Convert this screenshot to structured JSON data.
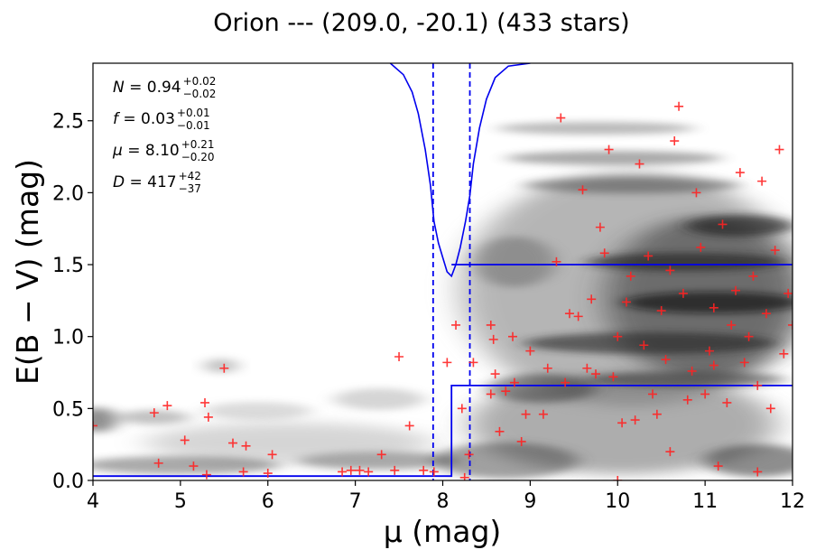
{
  "chart_data": {
    "type": "scatter",
    "title": "Orion --- (209.0, -20.1) (433 stars)",
    "xlabel": "μ (mag)",
    "ylabel": "E(B − V) (mag)",
    "xlim": [
      4,
      12
    ],
    "ylim": [
      0,
      2.9
    ],
    "xticks": [
      "4",
      "5",
      "6",
      "7",
      "8",
      "9",
      "10",
      "11",
      "12"
    ],
    "yticks": [
      "0.0",
      "0.5",
      "1.0",
      "1.5",
      "2.0",
      "2.5"
    ],
    "grid": false,
    "annotations": [
      {
        "sym": "N",
        "value": "0.94",
        "sup": "+0.02",
        "sub": "−0.02"
      },
      {
        "sym": "f",
        "value": "0.03",
        "sup": "+0.01",
        "sub": "−0.01"
      },
      {
        "sym": "μ",
        "value": "8.10",
        "sup": "+0.21",
        "sub": "−0.20"
      },
      {
        "sym": "D",
        "value": "417",
        "sup": "+42",
        "sub": "−37"
      }
    ],
    "colors": {
      "stars": "#ff2222",
      "model": "#0000ee",
      "density": "#1a1a1a",
      "axes": "#000000"
    },
    "fit_profile": [
      [
        4,
        0.03
      ],
      [
        8.1,
        0.03
      ],
      [
        8.1,
        0.66
      ],
      [
        12,
        0.66
      ]
    ],
    "upper_profile": [
      [
        8.1,
        1.5
      ],
      [
        12,
        1.5
      ]
    ],
    "dashed_lines_x": [
      7.89,
      8.31
    ],
    "probability_curve": [
      [
        7.4,
        2.9
      ],
      [
        7.55,
        2.82
      ],
      [
        7.65,
        2.7
      ],
      [
        7.72,
        2.55
      ],
      [
        7.8,
        2.3
      ],
      [
        7.86,
        2.05
      ],
      [
        7.9,
        1.8
      ],
      [
        7.95,
        1.65
      ],
      [
        8.0,
        1.55
      ],
      [
        8.05,
        1.45
      ],
      [
        8.1,
        1.42
      ],
      [
        8.15,
        1.5
      ],
      [
        8.2,
        1.62
      ],
      [
        8.26,
        1.8
      ],
      [
        8.31,
        1.98
      ],
      [
        8.35,
        2.2
      ],
      [
        8.42,
        2.45
      ],
      [
        8.5,
        2.65
      ],
      [
        8.6,
        2.8
      ],
      [
        8.75,
        2.88
      ],
      [
        9.0,
        2.9
      ]
    ],
    "stars": [
      [
        4.0,
        0.38
      ],
      [
        4.7,
        0.47
      ],
      [
        4.75,
        0.12
      ],
      [
        4.85,
        0.52
      ],
      [
        5.05,
        0.28
      ],
      [
        5.15,
        0.1
      ],
      [
        5.28,
        0.54
      ],
      [
        5.32,
        0.44
      ],
      [
        5.3,
        0.04
      ],
      [
        5.5,
        0.78
      ],
      [
        5.6,
        0.26
      ],
      [
        5.75,
        0.24
      ],
      [
        5.72,
        0.06
      ],
      [
        6.05,
        0.18
      ],
      [
        6.0,
        0.05
      ],
      [
        6.85,
        0.06
      ],
      [
        6.95,
        0.07
      ],
      [
        7.05,
        0.07
      ],
      [
        7.15,
        0.06
      ],
      [
        7.3,
        0.18
      ],
      [
        7.45,
        0.07
      ],
      [
        7.5,
        0.86
      ],
      [
        7.62,
        0.38
      ],
      [
        7.78,
        0.07
      ],
      [
        7.9,
        0.06
      ],
      [
        8.05,
        0.82
      ],
      [
        8.15,
        1.08
      ],
      [
        8.22,
        0.5
      ],
      [
        8.3,
        0.18
      ],
      [
        8.35,
        0.82
      ],
      [
        8.25,
        0.02
      ],
      [
        8.55,
        1.08
      ],
      [
        8.58,
        0.98
      ],
      [
        8.6,
        0.74
      ],
      [
        8.65,
        0.34
      ],
      [
        8.55,
        0.6
      ],
      [
        8.72,
        0.62
      ],
      [
        8.8,
        1.0
      ],
      [
        8.82,
        0.68
      ],
      [
        8.9,
        0.27
      ],
      [
        8.95,
        0.46
      ],
      [
        9.0,
        0.9
      ],
      [
        9.15,
        0.46
      ],
      [
        9.2,
        0.78
      ],
      [
        9.3,
        1.52
      ],
      [
        9.35,
        2.52
      ],
      [
        9.4,
        0.68
      ],
      [
        9.45,
        1.16
      ],
      [
        9.55,
        1.14
      ],
      [
        9.6,
        2.02
      ],
      [
        9.65,
        0.78
      ],
      [
        9.7,
        1.26
      ],
      [
        9.75,
        0.74
      ],
      [
        9.8,
        1.76
      ],
      [
        9.85,
        1.58
      ],
      [
        9.9,
        2.3
      ],
      [
        9.95,
        0.72
      ],
      [
        10.0,
        1.0
      ],
      [
        10.05,
        0.4
      ],
      [
        10.1,
        1.24
      ],
      [
        10.15,
        1.42
      ],
      [
        10.2,
        0.42
      ],
      [
        10.25,
        2.2
      ],
      [
        10.3,
        0.94
      ],
      [
        10.35,
        1.56
      ],
      [
        10.4,
        0.6
      ],
      [
        10.45,
        0.46
      ],
      [
        10.5,
        1.18
      ],
      [
        10.55,
        0.84
      ],
      [
        10.6,
        1.46
      ],
      [
        10.65,
        2.36
      ],
      [
        10.7,
        2.6
      ],
      [
        10.75,
        1.3
      ],
      [
        10.8,
        0.56
      ],
      [
        10.85,
        0.76
      ],
      [
        10.9,
        2.0
      ],
      [
        10.95,
        1.62
      ],
      [
        11.0,
        0.6
      ],
      [
        11.05,
        0.9
      ],
      [
        11.1,
        1.2
      ],
      [
        11.15,
        0.1
      ],
      [
        11.2,
        1.78
      ],
      [
        11.25,
        0.54
      ],
      [
        11.3,
        1.08
      ],
      [
        11.35,
        1.32
      ],
      [
        11.4,
        2.14
      ],
      [
        11.45,
        0.82
      ],
      [
        11.5,
        1.0
      ],
      [
        11.55,
        1.42
      ],
      [
        11.6,
        0.66
      ],
      [
        11.65,
        2.08
      ],
      [
        11.7,
        1.16
      ],
      [
        11.75,
        0.5
      ],
      [
        11.8,
        1.6
      ],
      [
        11.85,
        2.3
      ],
      [
        11.9,
        0.88
      ],
      [
        11.95,
        1.3
      ],
      [
        12.0,
        1.08
      ],
      [
        11.1,
        0.8
      ],
      [
        10.6,
        0.2
      ],
      [
        10.0,
        0.0
      ],
      [
        11.6,
        0.06
      ]
    ]
  }
}
